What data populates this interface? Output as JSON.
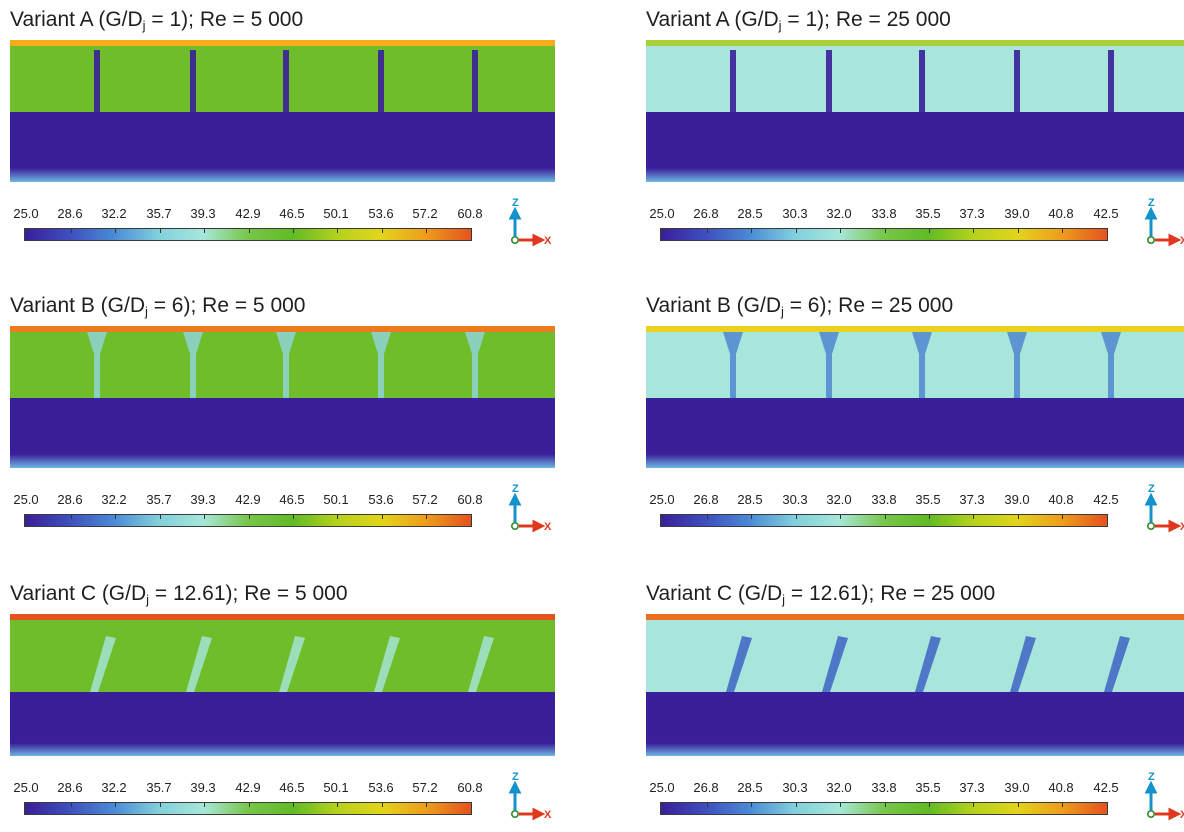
{
  "colors": {
    "cold": "#3a1e9a",
    "ambient": "#a7e3e0",
    "mid_green": "#6fbd2a",
    "hot": "#e4531e",
    "axis_z": "#1592c9",
    "axis_x": "#e0381e",
    "origin": "#2f8a2a"
  },
  "colormap": [
    "#3a1e9a",
    "#3f4fbf",
    "#4b8bd6",
    "#82d0dc",
    "#a7e7d9",
    "#78c64a",
    "#61bb24",
    "#b5d21c",
    "#e2d41b",
    "#ee9c1c",
    "#e4531e"
  ],
  "axes_triad": {
    "z_label": "Z",
    "x_label": "X"
  },
  "panels": [
    {
      "id": "A-5000",
      "title_prefix": "Variant A (G/D",
      "title_sub": "j",
      "title_suffix": " = 1); Re = 5 000",
      "fill": "#6fbd2a",
      "top_strip": "#f4ad18",
      "plate": "#3a1e9a",
      "ticks": [
        "25.0",
        "28.6",
        "32.2",
        "35.7",
        "39.3",
        "42.9",
        "46.5",
        "50.1",
        "53.6",
        "57.2",
        "60.8"
      ]
    },
    {
      "id": "A-25000",
      "title_prefix": "Variant A (G/D",
      "title_sub": "j",
      "title_suffix": " = 1); Re = 25 000",
      "fill": "#a8e6dc",
      "top_strip": "#a9cf3b",
      "plate": "#3a1e9a",
      "ticks": [
        "25.0",
        "26.8",
        "28.5",
        "30.3",
        "32.0",
        "33.8",
        "35.5",
        "37.3",
        "39.0",
        "40.8",
        "42.5"
      ]
    },
    {
      "id": "B-5000",
      "title_prefix": "Variant B (G/D",
      "title_sub": "j",
      "title_suffix": " = 6); Re = 5 000",
      "fill": "#6fbd2a",
      "top_strip": "#ec7a1e",
      "plate": "#3a1e9a",
      "ticks": [
        "25.0",
        "28.6",
        "32.2",
        "35.7",
        "39.3",
        "42.9",
        "46.5",
        "50.1",
        "53.6",
        "57.2",
        "60.8"
      ]
    },
    {
      "id": "B-25000",
      "title_prefix": "Variant B (G/D",
      "title_sub": "j",
      "title_suffix": " = 6); Re = 25 000",
      "fill": "#a8e6dc",
      "top_strip": "#e8d21e",
      "plate": "#3a1e9a",
      "ticks": [
        "25.0",
        "26.8",
        "28.5",
        "30.3",
        "32.0",
        "33.8",
        "35.5",
        "37.3",
        "39.0",
        "40.8",
        "42.5"
      ]
    },
    {
      "id": "C-5000",
      "title_prefix": "Variant C (G/D",
      "title_sub": "j",
      "title_suffix": " = 12.61); Re = 5 000",
      "fill": "#6fbd2a",
      "top_strip": "#e4531e",
      "plate": "#3a1e9a",
      "ticks": [
        "25.0",
        "28.6",
        "32.2",
        "35.7",
        "39.3",
        "42.9",
        "46.5",
        "50.1",
        "53.6",
        "57.2",
        "60.8"
      ]
    },
    {
      "id": "C-25000",
      "title_prefix": "Variant C (G/D",
      "title_sub": "j",
      "title_suffix": " = 12.61); Re = 25 000",
      "fill": "#a8e6dc",
      "top_strip": "#ea6f1e",
      "plate": "#3a1e9a",
      "ticks": [
        "25.0",
        "26.8",
        "28.5",
        "30.3",
        "32.0",
        "33.8",
        "35.5",
        "37.3",
        "39.0",
        "40.8",
        "42.5"
      ]
    }
  ]
}
